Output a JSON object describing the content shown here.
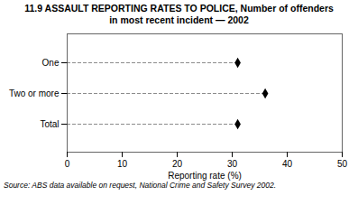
{
  "chart_data": {
    "type": "dot",
    "orientation": "horizontal",
    "title": "11.9  ASSAULT REPORTING RATES TO POLICE, Number of offenders",
    "subtitle": "in most recent incident — 2002",
    "categories": [
      "Total",
      "Two or more",
      "One"
    ],
    "values": [
      31,
      36,
      31
    ],
    "color": "#000000",
    "marker": "diamond",
    "line_style": "dashed",
    "xlabel": "Reporting rate (%)",
    "xlim": [
      0,
      50
    ],
    "xticks": [
      0,
      10,
      20,
      30,
      40,
      50
    ],
    "grid": false,
    "source": "Source: ABS data available on request, National Crime and Safety Survey 2002."
  }
}
